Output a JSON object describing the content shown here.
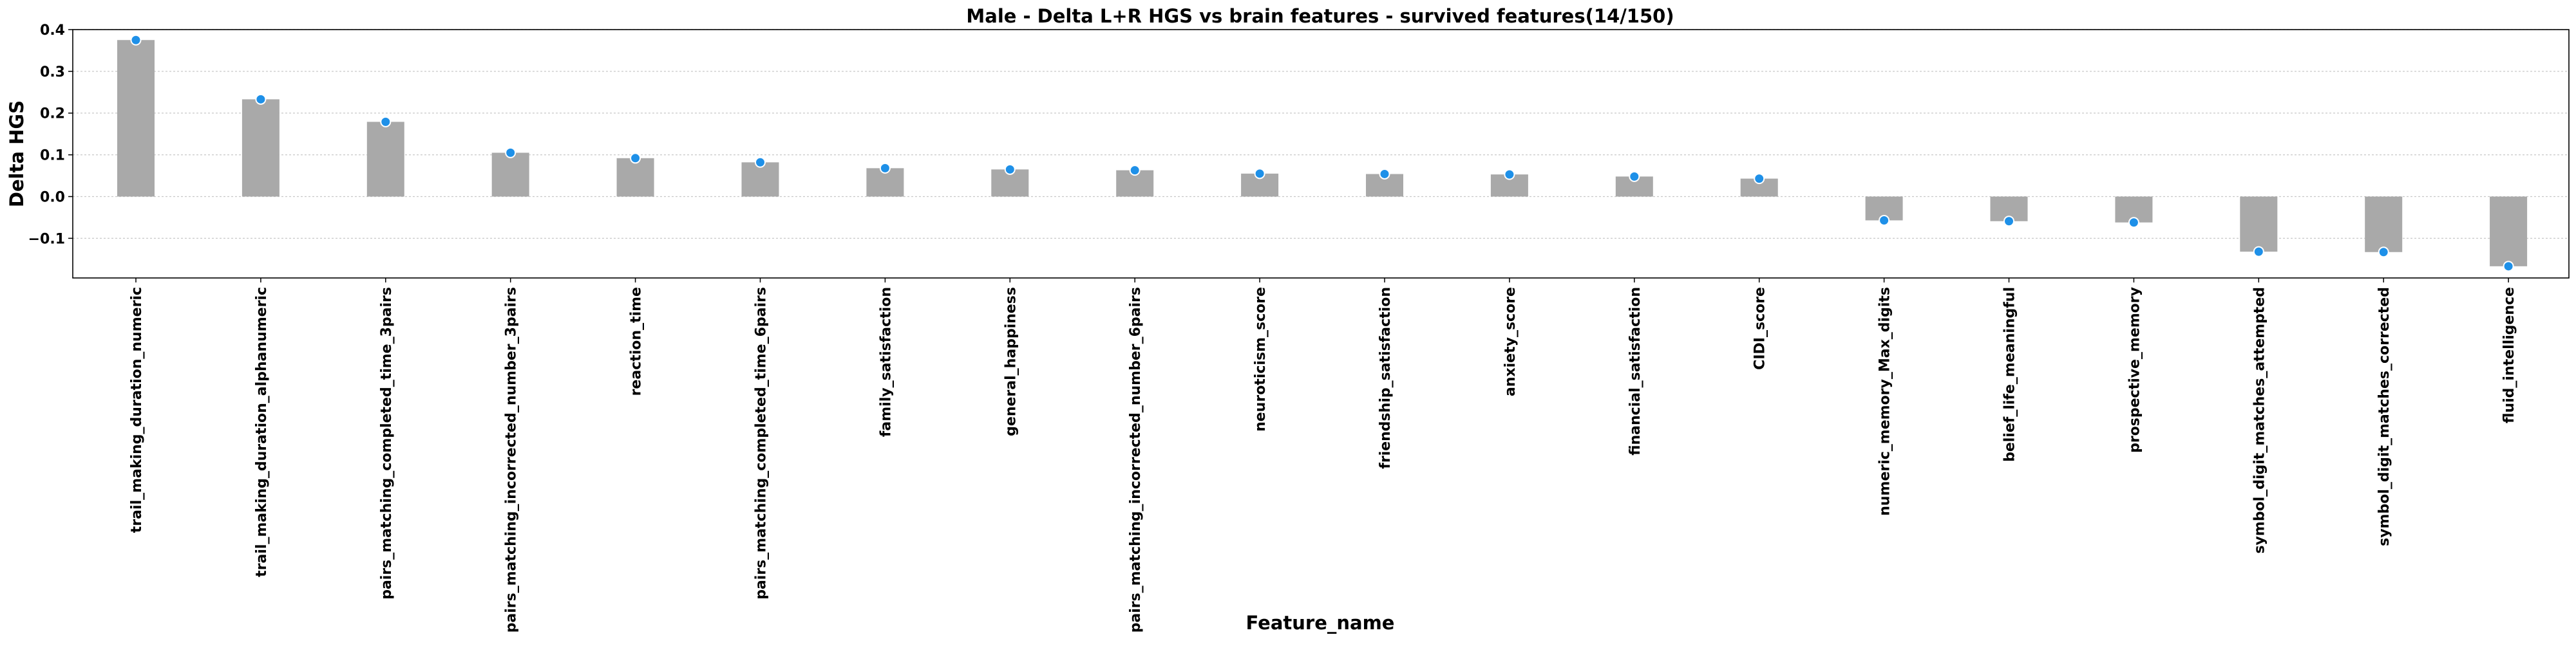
{
  "chart_data": {
    "type": "bar",
    "title": "Male - Delta L+R HGS vs brain features - survived features(14/150)",
    "xlabel": "Feature_name",
    "ylabel": "Delta HGS",
    "ylim": [
      -0.195,
      0.4
    ],
    "yticks": [
      -0.1,
      0.0,
      0.1,
      0.2,
      0.3,
      0.4
    ],
    "ytick_labels": [
      "−0.1",
      "0.0",
      "0.1",
      "0.2",
      "0.3",
      "0.4"
    ],
    "grid": "horizontal dotted",
    "colors": {
      "bar": "#a9a9a9",
      "point": "#1e90e8",
      "point_edge": "#ffffff",
      "grid": "#c8c8c8",
      "axis": "#000000"
    },
    "categories": [
      "trail_making_duration_numeric",
      "trail_making_duration_alphanumeric",
      "pairs_matching_completed_time_3pairs",
      "pairs_matching_incorrected_number_3pairs",
      "reaction_time",
      "pairs_matching_completed_time_6pairs",
      "family_satisfaction",
      "general_happiness",
      "pairs_matching_incorrected_number_6pairs",
      "neuroticism_score",
      "friendship_satisfaction",
      "anxiety_score",
      "financial_satisfaction",
      "CIDI_score",
      "numeric_memory_Max_digits",
      "belief_life_meaningful",
      "prospective_memory",
      "symbol_digit_matches_attempted",
      "symbol_digit_matches_corrected",
      "fluid_intelligence"
    ],
    "values": [
      0.375,
      0.233,
      0.179,
      0.105,
      0.092,
      0.082,
      0.068,
      0.065,
      0.063,
      0.055,
      0.054,
      0.053,
      0.048,
      0.043,
      -0.057,
      -0.059,
      -0.062,
      -0.132,
      -0.133,
      -0.167
    ]
  }
}
